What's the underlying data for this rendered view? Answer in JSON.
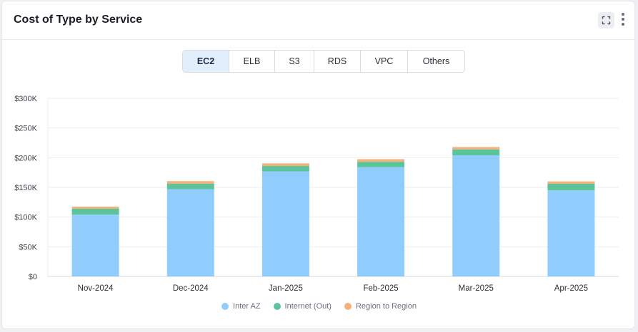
{
  "card": {
    "title": "Cost of Type by Service"
  },
  "icons": {
    "expand": "expand-icon",
    "menu": "kebab-menu-icon"
  },
  "tabs": [
    {
      "label": "EC2",
      "active": true
    },
    {
      "label": "ELB",
      "active": false
    },
    {
      "label": "S3",
      "active": false
    },
    {
      "label": "RDS",
      "active": false
    },
    {
      "label": "VPC",
      "active": false
    },
    {
      "label": "Others",
      "active": false
    }
  ],
  "chart_data": {
    "type": "bar",
    "stacked": true,
    "title": "",
    "xlabel": "",
    "ylabel": "",
    "categories": [
      "Nov-2024",
      "Dec-2024",
      "Jan-2025",
      "Feb-2025",
      "Mar-2025",
      "Apr-2025"
    ],
    "series": [
      {
        "name": "Inter AZ",
        "color": "#90cdfd",
        "values": [
          104000,
          147000,
          177000,
          184000,
          204000,
          145000
        ]
      },
      {
        "name": "Internet (Out)",
        "color": "#5cc49b",
        "values": [
          10000,
          9000,
          9000,
          9000,
          10000,
          11000
        ]
      },
      {
        "name": "Region to Region",
        "color": "#f3b27c",
        "values": [
          3500,
          4500,
          4500,
          4500,
          4000,
          4000
        ]
      }
    ],
    "ylim": [
      0,
      300000
    ],
    "yticks": [
      0,
      50000,
      100000,
      150000,
      200000,
      250000,
      300000
    ],
    "ytick_labels": [
      "$0",
      "$50K",
      "$100K",
      "$150K",
      "$200K",
      "$250K",
      "$300K"
    ],
    "grid": true,
    "legend_position": "bottom-center"
  }
}
